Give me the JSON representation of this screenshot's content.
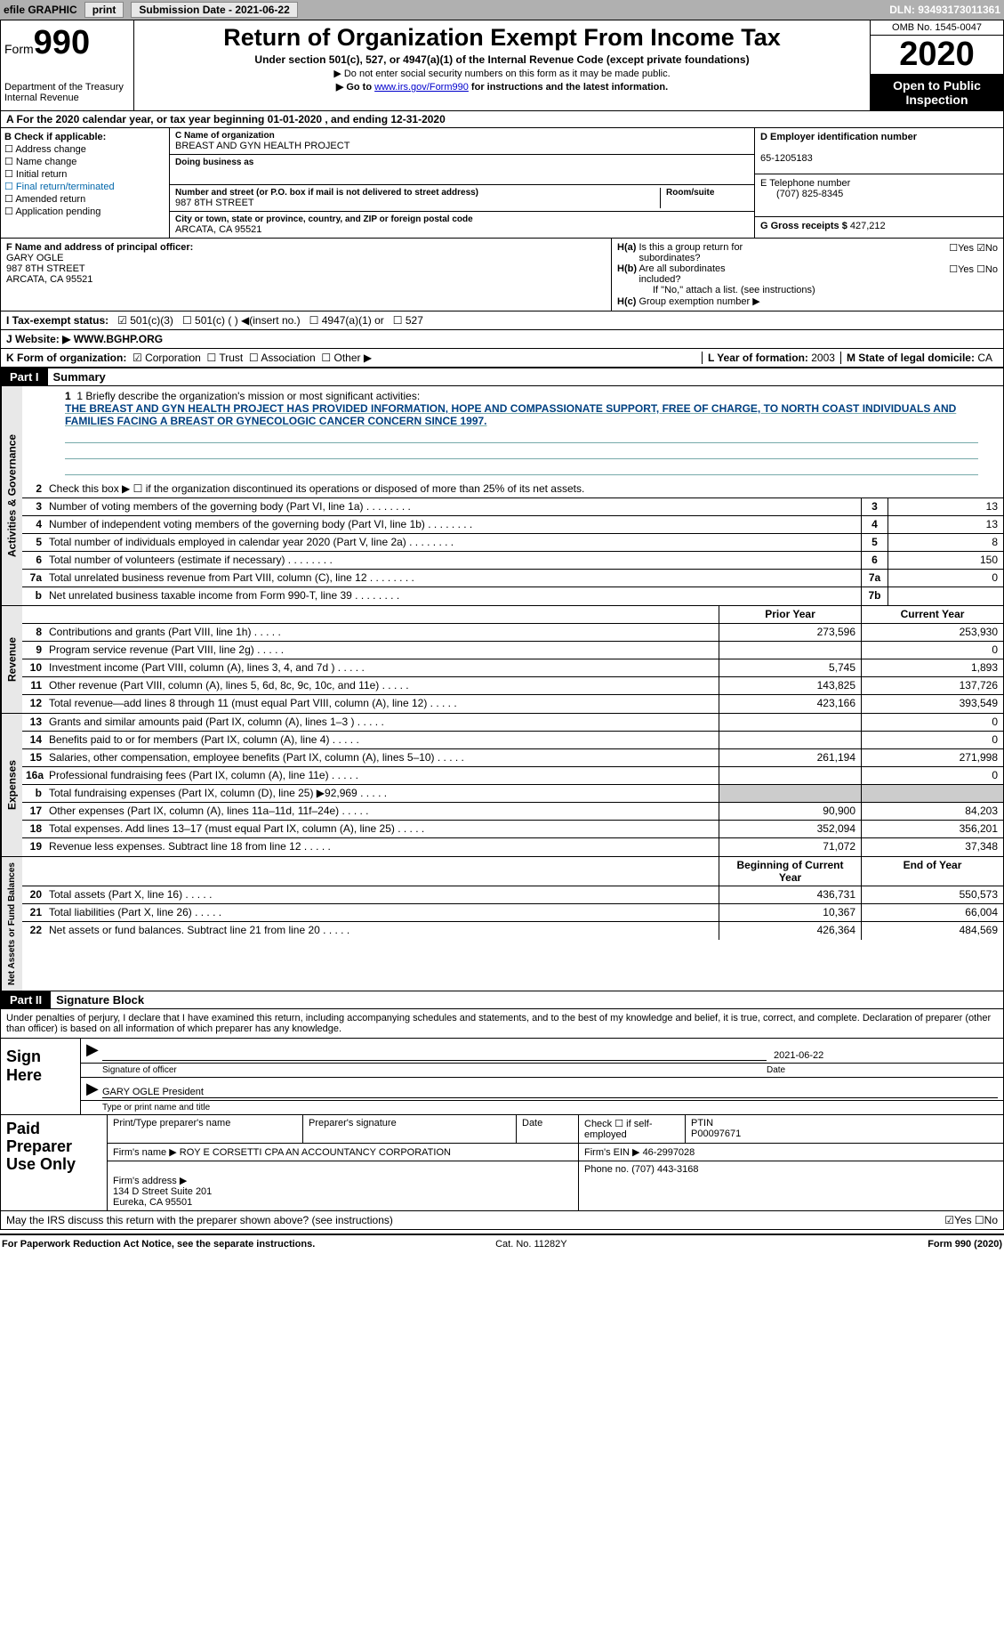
{
  "topbar": {
    "efile": "efile GRAPHIC",
    "print": "print",
    "sub_label": "Submission Date - 2021-06-22",
    "dln": "DLN: 93493173011361"
  },
  "header": {
    "form_word": "Form",
    "form_num": "990",
    "dept": "Department of the Treasury\nInternal Revenue",
    "title": "Return of Organization Exempt From Income Tax",
    "sub": "Under section 501(c), 527, or 4947(a)(1) of the Internal Revenue Code (except private foundations)",
    "sub2": "▶ Do not enter social security numbers on this form as it may be made public.",
    "sub3_pre": "▶ Go to ",
    "sub3_link": "www.irs.gov/Form990",
    "sub3_post": " for instructions and the latest information.",
    "omb": "OMB No. 1545-0047",
    "taxyear": "2020",
    "inspection": "Open to Public Inspection"
  },
  "rowA": "A For the 2020 calendar year, or tax year beginning 01-01-2020   , and ending 12-31-2020",
  "colB": {
    "hdr": "B Check if applicable:",
    "items": [
      "Address change",
      "Name change",
      "Initial return",
      "Final return/terminated",
      "Amended return",
      "Application pending"
    ]
  },
  "colC": {
    "name_lbl": "C Name of organization",
    "name": "BREAST AND GYN HEALTH PROJECT",
    "dba_lbl": "Doing business as",
    "dba": "",
    "addr_lbl": "Number and street (or P.O. box if mail is not delivered to street address)",
    "room_lbl": "Room/suite",
    "addr": "987 8TH STREET",
    "city_lbl": "City or town, state or province, country, and ZIP or foreign postal code",
    "city": "ARCATA, CA  95521"
  },
  "colD": {
    "ein_lbl": "D Employer identification number",
    "ein": "65-1205183",
    "tel_lbl": "E Telephone number",
    "tel": "(707) 825-8345",
    "gross_lbl": "G Gross receipts $",
    "gross": "427,212"
  },
  "colF": {
    "lbl": "F  Name and address of principal officer:",
    "name": "GARY OGLE",
    "addr1": "987 8TH STREET",
    "addr2": "ARCATA, CA  95521"
  },
  "colH": {
    "a": "H(a)  Is this a group return for subordinates?",
    "a_ans": "☐Yes ☑No",
    "b": "H(b)  Are all subordinates included?",
    "b_ans": "☐Yes ☐No",
    "b_note": "If \"No,\" attach a list. (see instructions)",
    "c": "H(c)  Group exemption number ▶"
  },
  "rowI": {
    "lbl": "I   Tax-exempt status:",
    "o1": "501(c)(3)",
    "o2": "501(c) (  ) ◀(insert no.)",
    "o3": "4947(a)(1) or",
    "o4": "527"
  },
  "rowJ": {
    "lbl": "J   Website: ▶",
    "val": " WWW.BGHP.ORG"
  },
  "rowK": {
    "lbl": "K Form of organization:",
    "o1": "Corporation",
    "o2": "Trust",
    "o3": "Association",
    "o4": "Other ▶",
    "l_lbl": "L Year of formation:",
    "l_val": "2003",
    "m_lbl": "M State of legal domicile:",
    "m_val": "CA"
  },
  "part1": {
    "hdr": "Part I",
    "title": "Summary"
  },
  "mission": {
    "lbl": "1   Briefly describe the organization's mission or most significant activities:",
    "txt": "THE BREAST AND GYN HEALTH PROJECT HAS PROVIDED INFORMATION, HOPE AND COMPASSIONATE SUPPORT, FREE OF CHARGE, TO NORTH COAST INDIVIDUALS AND FAMILIES FACING A BREAST OR GYNECOLOGIC CANCER CONCERN SINCE 1997."
  },
  "gov_lines": [
    {
      "n": "2",
      "d": "Check this box ▶ ☐  if the organization discontinued its operations or disposed of more than 25% of its net assets.",
      "b": "",
      "v": ""
    },
    {
      "n": "3",
      "d": "Number of voting members of the governing body (Part VI, line 1a)",
      "b": "3",
      "v": "13"
    },
    {
      "n": "4",
      "d": "Number of independent voting members of the governing body (Part VI, line 1b)",
      "b": "4",
      "v": "13"
    },
    {
      "n": "5",
      "d": "Total number of individuals employed in calendar year 2020 (Part V, line 2a)",
      "b": "5",
      "v": "8"
    },
    {
      "n": "6",
      "d": "Total number of volunteers (estimate if necessary)",
      "b": "6",
      "v": "150"
    },
    {
      "n": "7a",
      "d": "Total unrelated business revenue from Part VIII, column (C), line 12",
      "b": "7a",
      "v": "0"
    },
    {
      "n": "b",
      "d": "Net unrelated business taxable income from Form 990-T, line 39",
      "b": "7b",
      "v": ""
    }
  ],
  "hdr_pc": {
    "py": "Prior Year",
    "cy": "Current Year"
  },
  "rev_lines": [
    {
      "n": "8",
      "d": "Contributions and grants (Part VIII, line 1h)",
      "py": "273,596",
      "cy": "253,930"
    },
    {
      "n": "9",
      "d": "Program service revenue (Part VIII, line 2g)",
      "py": "",
      "cy": "0"
    },
    {
      "n": "10",
      "d": "Investment income (Part VIII, column (A), lines 3, 4, and 7d )",
      "py": "5,745",
      "cy": "1,893"
    },
    {
      "n": "11",
      "d": "Other revenue (Part VIII, column (A), lines 5, 6d, 8c, 9c, 10c, and 11e)",
      "py": "143,825",
      "cy": "137,726"
    },
    {
      "n": "12",
      "d": "Total revenue—add lines 8 through 11 (must equal Part VIII, column (A), line 12)",
      "py": "423,166",
      "cy": "393,549"
    }
  ],
  "exp_lines": [
    {
      "n": "13",
      "d": "Grants and similar amounts paid (Part IX, column (A), lines 1–3 )",
      "py": "",
      "cy": "0"
    },
    {
      "n": "14",
      "d": "Benefits paid to or for members (Part IX, column (A), line 4)",
      "py": "",
      "cy": "0"
    },
    {
      "n": "15",
      "d": "Salaries, other compensation, employee benefits (Part IX, column (A), lines 5–10)",
      "py": "261,194",
      "cy": "271,998"
    },
    {
      "n": "16a",
      "d": "Professional fundraising fees (Part IX, column (A), line 11e)",
      "py": "",
      "cy": "0"
    },
    {
      "n": "b",
      "d": "Total fundraising expenses (Part IX, column (D), line 25) ▶92,969",
      "py": "GRAY",
      "cy": "GRAY"
    },
    {
      "n": "17",
      "d": "Other expenses (Part IX, column (A), lines 11a–11d, 11f–24e)",
      "py": "90,900",
      "cy": "84,203"
    },
    {
      "n": "18",
      "d": "Total expenses. Add lines 13–17 (must equal Part IX, column (A), line 25)",
      "py": "352,094",
      "cy": "356,201"
    },
    {
      "n": "19",
      "d": "Revenue less expenses. Subtract line 18 from line 12",
      "py": "71,072",
      "cy": "37,348"
    }
  ],
  "hdr_na": {
    "py": "Beginning of Current Year",
    "cy": "End of Year"
  },
  "na_lines": [
    {
      "n": "20",
      "d": "Total assets (Part X, line 16)",
      "py": "436,731",
      "cy": "550,573"
    },
    {
      "n": "21",
      "d": "Total liabilities (Part X, line 26)",
      "py": "10,367",
      "cy": "66,004"
    },
    {
      "n": "22",
      "d": "Net assets or fund balances. Subtract line 21 from line 20",
      "py": "426,364",
      "cy": "484,569"
    }
  ],
  "side_labels": {
    "gov": "Activities & Governance",
    "rev": "Revenue",
    "exp": "Expenses",
    "na": "Net Assets or Fund Balances"
  },
  "part2": {
    "hdr": "Part II",
    "title": "Signature Block"
  },
  "sig_decl": "Under penalties of perjury, I declare that I have examined this return, including accompanying schedules and statements, and to the best of my knowledge and belief, it is true, correct, and complete. Declaration of preparer (other than officer) is based on all information of which preparer has any knowledge.",
  "sign": {
    "here": "Sign Here",
    "sig_lbl": "Signature of officer",
    "date_lbl": "Date",
    "date": "2021-06-22",
    "name": "GARY OGLE President",
    "name_lbl": "Type or print name and title"
  },
  "prep": {
    "here": "Paid Preparer Use Only",
    "h1": "Print/Type preparer's name",
    "h2": "Preparer's signature",
    "h3": "Date",
    "h4": "Check ☐ if self-employed",
    "h5": "PTIN",
    "ptin": "P00097671",
    "firm_lbl": "Firm's name    ▶",
    "firm": "ROY E CORSETTI CPA AN ACCOUNTANCY CORPORATION",
    "ein_lbl": "Firm's EIN ▶",
    "ein": "46-2997028",
    "addr_lbl": "Firm's address ▶",
    "addr": "134 D Street Suite 201\nEureka, CA  95501",
    "phone_lbl": "Phone no.",
    "phone": "(707) 443-3168"
  },
  "discuss": {
    "q": "May the IRS discuss this return with the preparer shown above? (see instructions)",
    "ans": "☑Yes  ☐No"
  },
  "footer": {
    "l": "For Paperwork Reduction Act Notice, see the separate instructions.",
    "m": "Cat. No. 11282Y",
    "r": "Form 990 (2020)"
  }
}
